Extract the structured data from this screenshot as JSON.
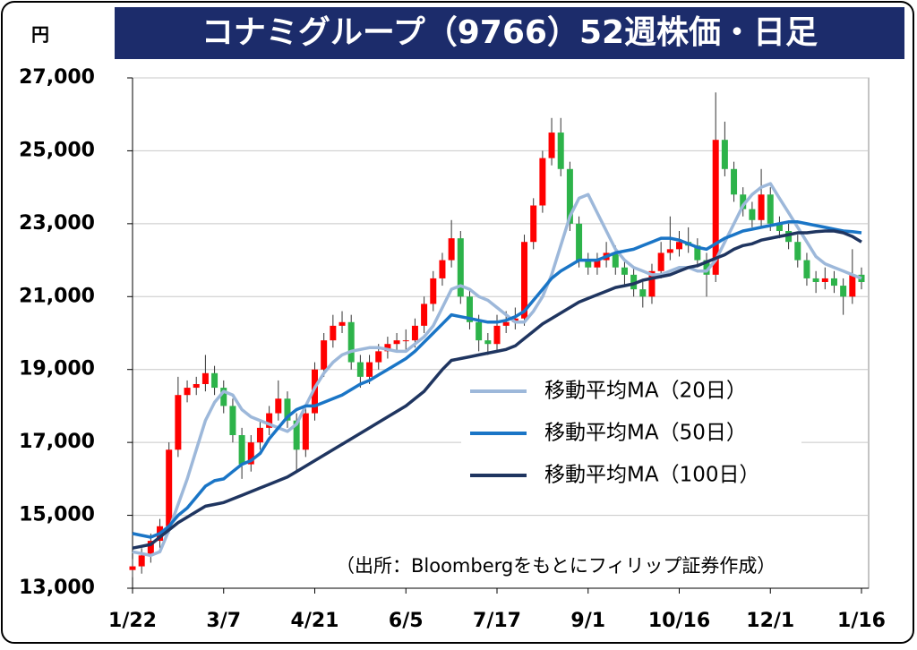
{
  "chart_data": {
    "type": "candlestick",
    "title": "コナミグループ（9766）52週株価・日足",
    "y_unit": "円",
    "source": "（出所：Bloombergをもとにフィリップ証券作成）",
    "up_color": "#ff0000",
    "down_color": "#2db34a",
    "ylim": [
      13000,
      27000
    ],
    "yticks": [
      {
        "value": 13000,
        "label": "13,000"
      },
      {
        "value": 15000,
        "label": "15,000"
      },
      {
        "value": 17000,
        "label": "17,000"
      },
      {
        "value": 19000,
        "label": "19,000"
      },
      {
        "value": 21000,
        "label": "21,000"
      },
      {
        "value": 23000,
        "label": "23,000"
      },
      {
        "value": 25000,
        "label": "25,000"
      },
      {
        "value": 27000,
        "label": "27,000"
      }
    ],
    "grid": true,
    "categories": [
      "1/22",
      null,
      null,
      null,
      null,
      null,
      null,
      null,
      null,
      null,
      "3/7",
      null,
      null,
      null,
      null,
      null,
      null,
      null,
      null,
      null,
      "4/21",
      null,
      null,
      null,
      null,
      null,
      null,
      null,
      null,
      null,
      "6/5",
      null,
      null,
      null,
      null,
      null,
      null,
      null,
      null,
      null,
      "7/17",
      null,
      null,
      null,
      null,
      null,
      null,
      null,
      null,
      null,
      "9/1",
      null,
      null,
      null,
      null,
      null,
      null,
      null,
      null,
      null,
      "10/16",
      null,
      null,
      null,
      null,
      null,
      null,
      null,
      null,
      null,
      "12/1",
      null,
      null,
      null,
      null,
      null,
      null,
      null,
      null,
      null,
      "1/16"
    ],
    "open": [
      13500,
      13600,
      13900,
      14300,
      14700,
      16800,
      18300,
      18500,
      18600,
      18900,
      18500,
      18000,
      17200,
      16400,
      17000,
      17400,
      17800,
      18200,
      17600,
      16800,
      17800,
      19000,
      19800,
      20200,
      20300,
      19200,
      18800,
      19200,
      19500,
      19700,
      19800,
      19800,
      20200,
      20800,
      21500,
      22000,
      22600,
      21000,
      20300,
      19800,
      19700,
      20200,
      20300,
      20400,
      22500,
      23500,
      24800,
      25500,
      24500,
      23000,
      22000,
      21800,
      22000,
      22200,
      21800,
      21600,
      21200,
      21000,
      21700,
      22200,
      22300,
      22500,
      22400,
      22000,
      21600,
      25300,
      24500,
      23800,
      23400,
      23100,
      23800,
      23000,
      22800,
      22500,
      22000,
      21500,
      21400,
      21500,
      21300,
      21000,
      21600
    ],
    "high": [
      13800,
      14100,
      14500,
      14900,
      17000,
      18800,
      18700,
      18800,
      19400,
      19100,
      18700,
      18200,
      17400,
      17200,
      17600,
      18000,
      18700,
      18400,
      17800,
      18000,
      19200,
      20000,
      20500,
      20600,
      20500,
      19400,
      19400,
      19700,
      19900,
      20000,
      20100,
      20400,
      21000,
      21700,
      22200,
      23100,
      22800,
      21200,
      20500,
      20000,
      20500,
      20600,
      20700,
      22700,
      23700,
      25000,
      25900,
      25900,
      24700,
      23200,
      22200,
      22200,
      22500,
      22400,
      22000,
      21800,
      21400,
      21900,
      22500,
      23200,
      22800,
      22900,
      22600,
      22200,
      26600,
      25800,
      24700,
      24000,
      23600,
      24500,
      24000,
      23200,
      23000,
      22700,
      22200,
      21700,
      21800,
      21700,
      21500,
      22300,
      21800
    ],
    "low": [
      13300,
      13400,
      13700,
      14100,
      14500,
      16600,
      18100,
      18300,
      18400,
      18300,
      17800,
      17000,
      16000,
      16200,
      16800,
      17200,
      17600,
      17400,
      16200,
      16600,
      17600,
      18800,
      19600,
      20000,
      19000,
      18500,
      18600,
      19000,
      19300,
      19500,
      19500,
      19600,
      20000,
      20600,
      21300,
      21800,
      20800,
      20100,
      19500,
      19400,
      19500,
      20000,
      20100,
      20200,
      22300,
      23300,
      24600,
      24300,
      22800,
      21800,
      21600,
      21600,
      21800,
      21600,
      21300,
      21000,
      20700,
      20800,
      21500,
      22000,
      22100,
      22200,
      21800,
      21000,
      21400,
      24300,
      23600,
      23200,
      22900,
      22900,
      22800,
      22600,
      22300,
      21800,
      21300,
      21100,
      21200,
      21100,
      20500,
      20800,
      21200
    ],
    "close": [
      13600,
      13900,
      14300,
      14700,
      16800,
      18300,
      18500,
      18600,
      18900,
      18500,
      18000,
      17200,
      16400,
      17000,
      17400,
      17800,
      18200,
      17600,
      16800,
      17800,
      19000,
      19800,
      20200,
      20300,
      19200,
      18800,
      19200,
      19500,
      19700,
      19800,
      19800,
      20200,
      20800,
      21500,
      22000,
      22600,
      21000,
      20300,
      19800,
      19700,
      20200,
      20300,
      20400,
      22500,
      23500,
      24800,
      25500,
      24500,
      23000,
      22000,
      21800,
      22000,
      22200,
      21800,
      21600,
      21200,
      21000,
      21700,
      22200,
      22300,
      22500,
      22400,
      22000,
      21600,
      25300,
      24500,
      23800,
      23400,
      23100,
      23800,
      23000,
      22800,
      22500,
      22000,
      21500,
      21400,
      21500,
      21300,
      21000,
      21600,
      21400
    ],
    "series": [
      {
        "name": "移動平均MA（20日）",
        "color": "#9db8da",
        "values": [
          14000,
          13950,
          13900,
          14000,
          14600,
          15300,
          16000,
          16800,
          17600,
          18100,
          18400,
          18300,
          17900,
          17700,
          17600,
          17500,
          17400,
          17300,
          17500,
          18000,
          18500,
          18900,
          19200,
          19400,
          19500,
          19550,
          19600,
          19600,
          19550,
          19500,
          19500,
          19700,
          19900,
          20200,
          20700,
          21200,
          21300,
          21200,
          21000,
          20900,
          20700,
          20500,
          20300,
          20300,
          20600,
          21000,
          21600,
          22400,
          23200,
          23700,
          23800,
          23300,
          22800,
          22300,
          22000,
          21800,
          21700,
          21600,
          21600,
          21700,
          21800,
          21800,
          21700,
          21700,
          22000,
          22500,
          23000,
          23500,
          23800,
          24000,
          24100,
          23700,
          23300,
          22900,
          22500,
          22100,
          21900,
          21800,
          21700,
          21600,
          21500
        ]
      },
      {
        "name": "移動平均MA（50日）",
        "color": "#1a75c6",
        "values": [
          14500,
          14450,
          14400,
          14500,
          14700,
          15000,
          15200,
          15500,
          15800,
          15950,
          16000,
          16200,
          16400,
          16500,
          16700,
          17100,
          17400,
          17700,
          17900,
          18000,
          18000,
          18100,
          18200,
          18300,
          18450,
          18600,
          18700,
          18850,
          19000,
          19150,
          19300,
          19500,
          19750,
          20000,
          20250,
          20500,
          20450,
          20400,
          20350,
          20300,
          20300,
          20350,
          20450,
          20600,
          20900,
          21200,
          21500,
          21700,
          21850,
          22000,
          22000,
          22000,
          22100,
          22200,
          22250,
          22300,
          22400,
          22500,
          22600,
          22600,
          22550,
          22450,
          22350,
          22300,
          22450,
          22600,
          22700,
          22800,
          22850,
          22900,
          22950,
          23000,
          23050,
          23050,
          23000,
          22950,
          22900,
          22850,
          22800,
          22780,
          22750
        ]
      },
      {
        "name": "移動平均MA（100日）",
        "color": "#1f3560",
        "values": [
          14100,
          14150,
          14200,
          14400,
          14600,
          14800,
          14950,
          15100,
          15250,
          15300,
          15350,
          15450,
          15550,
          15650,
          15750,
          15850,
          15950,
          16050,
          16200,
          16350,
          16500,
          16650,
          16800,
          16950,
          17100,
          17250,
          17400,
          17550,
          17700,
          17850,
          18000,
          18200,
          18400,
          18700,
          19000,
          19250,
          19300,
          19350,
          19400,
          19450,
          19500,
          19550,
          19650,
          19850,
          20050,
          20250,
          20400,
          20550,
          20700,
          20850,
          20950,
          21050,
          21150,
          21250,
          21300,
          21350,
          21450,
          21500,
          21550,
          21600,
          21700,
          21800,
          21850,
          21950,
          22050,
          22150,
          22300,
          22400,
          22450,
          22550,
          22600,
          22650,
          22700,
          22750,
          22750,
          22780,
          22800,
          22800,
          22750,
          22650,
          22500
        ]
      }
    ]
  }
}
